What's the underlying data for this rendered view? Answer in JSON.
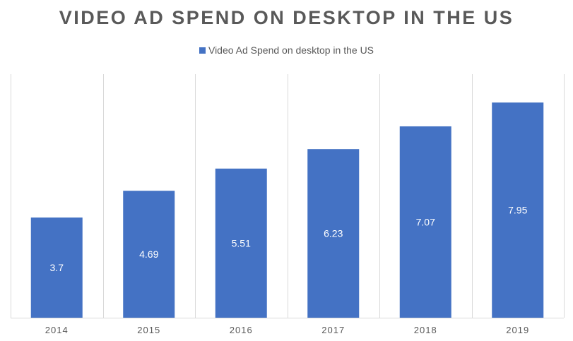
{
  "chart_data": {
    "type": "bar",
    "title": "VIDEO AD SPEND ON DESKTOP IN THE US",
    "categories": [
      "2014",
      "2015",
      "2016",
      "2017",
      "2018",
      "2019"
    ],
    "series": [
      {
        "name": "Video Ad Spend on desktop in the US",
        "values": [
          3.7,
          4.69,
          5.51,
          6.23,
          7.07,
          7.95
        ],
        "color": "#4472C4"
      }
    ],
    "data_labels": [
      "3.7",
      "4.69",
      "5.51",
      "6.23",
      "7.07",
      "7.95"
    ],
    "ylim": [
      0,
      9.0
    ],
    "legend_position": "top",
    "grid": "vertical category separators"
  },
  "colors": {
    "bar": "#4472C4",
    "gridline": "#D9D9D9",
    "text": "#595959"
  }
}
